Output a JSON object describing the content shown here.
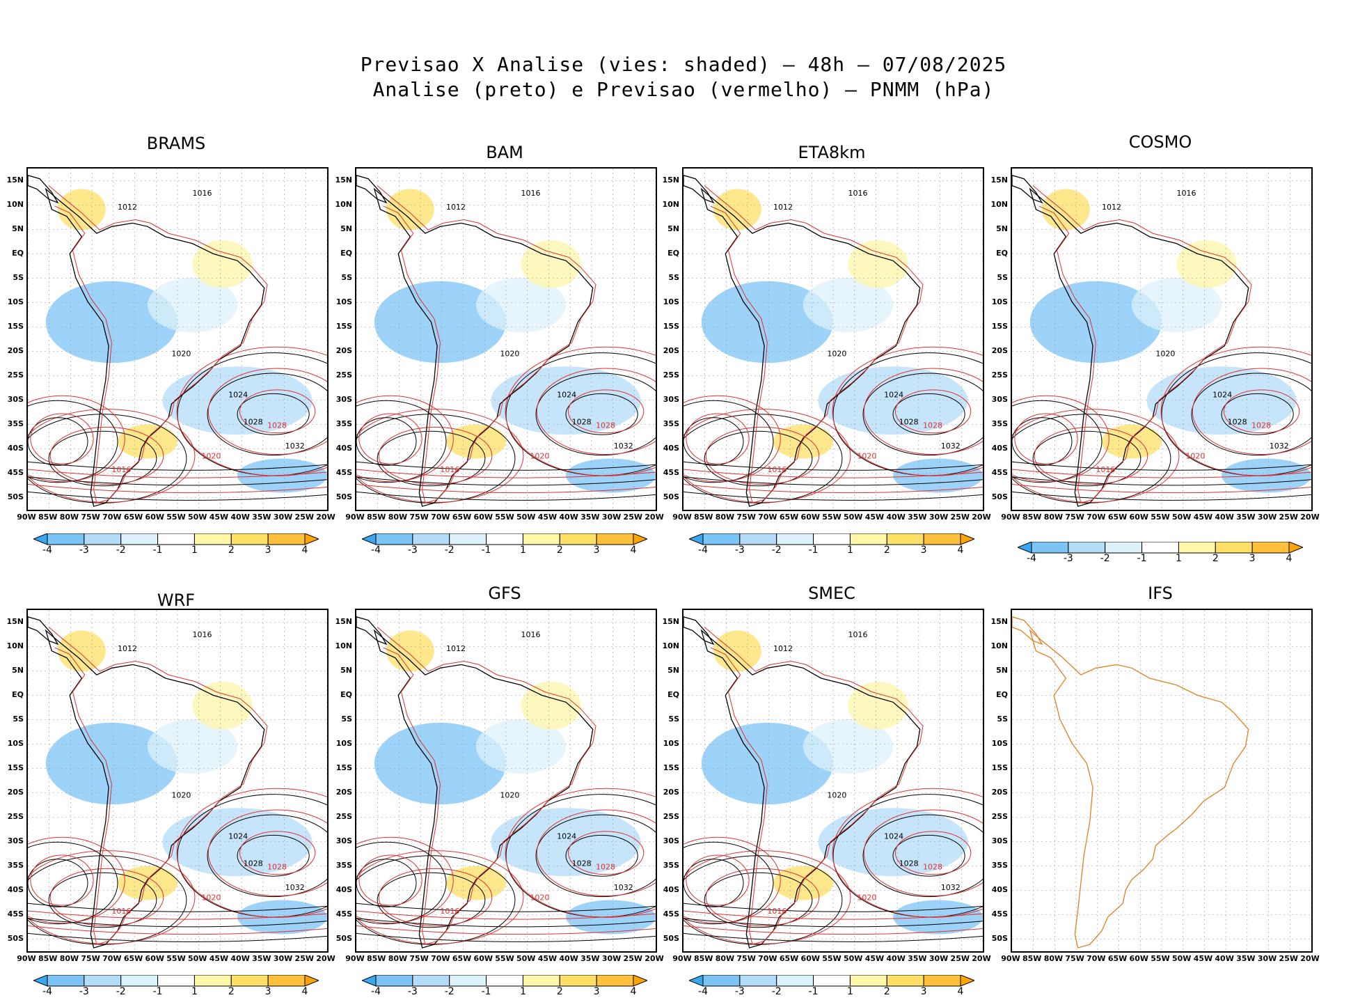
{
  "title": {
    "line1": "Previsao X Analise (vies: shaded) — 48h — 07/08/2025",
    "line2": "Analise (preto) e Previsao (vermelho) — PNMM (hPa)"
  },
  "lat_labels": [
    "15N",
    "10N",
    "5N",
    "EQ",
    "5S",
    "10S",
    "15S",
    "20S",
    "25S",
    "30S",
    "35S",
    "40S",
    "45S",
    "50S"
  ],
  "lon_labels": [
    "90W",
    "85W",
    "80W",
    "75W",
    "70W",
    "65W",
    "60W",
    "55W",
    "50W",
    "45W",
    "40W",
    "35W",
    "30W",
    "25W",
    "20W"
  ],
  "colorbar": {
    "labels": [
      "-4",
      "-3",
      "-2",
      "-1",
      "1",
      "2",
      "3",
      "4"
    ],
    "colors": [
      "#3aa6f0",
      "#7cc4f5",
      "#b4dcf8",
      "#def2fb",
      "#ffffff",
      "#fff6a8",
      "#ffe066",
      "#ffc13b",
      "#ffa500"
    ]
  },
  "panels": [
    {
      "name": "BRAMS",
      "label_a": "1012",
      "label_b": "1016",
      "label_c": "1020",
      "label_d": "1024",
      "label_e": "1028",
      "label_f": "1032",
      "has_data": true
    },
    {
      "name": "BAM",
      "label_a": "1012",
      "label_b": "1016",
      "label_c": "1020",
      "label_d": "1024",
      "label_e": "1028",
      "label_f": "1032",
      "has_data": true
    },
    {
      "name": "ETA8km",
      "label_a": "1012",
      "label_b": "1016",
      "label_c": "1020",
      "label_d": "1024",
      "label_e": "1028",
      "label_f": "1032",
      "has_data": true
    },
    {
      "name": "COSMO",
      "label_a": "1012",
      "label_b": "1016",
      "label_c": "1020",
      "label_d": "1024",
      "label_e": "1028",
      "label_f": "1032",
      "has_data": true
    },
    {
      "name": "WRF",
      "label_a": "1012",
      "label_b": "1016",
      "label_c": "1020",
      "label_d": "1024",
      "label_e": "1028",
      "label_f": "1032",
      "has_data": true
    },
    {
      "name": "GFS",
      "label_a": "1012",
      "label_b": "1016",
      "label_c": "1020",
      "label_d": "1024",
      "label_e": "1028",
      "label_f": "1032",
      "has_data": true
    },
    {
      "name": "SMEC",
      "label_a": "1012",
      "label_b": "1016",
      "label_c": "1020",
      "label_d": "1024",
      "label_e": "1028",
      "label_f": "1032",
      "has_data": true
    },
    {
      "name": "IFS",
      "label_a": "",
      "label_b": "",
      "label_c": "",
      "label_d": "",
      "label_e": "",
      "label_f": "",
      "has_data": false
    }
  ]
}
